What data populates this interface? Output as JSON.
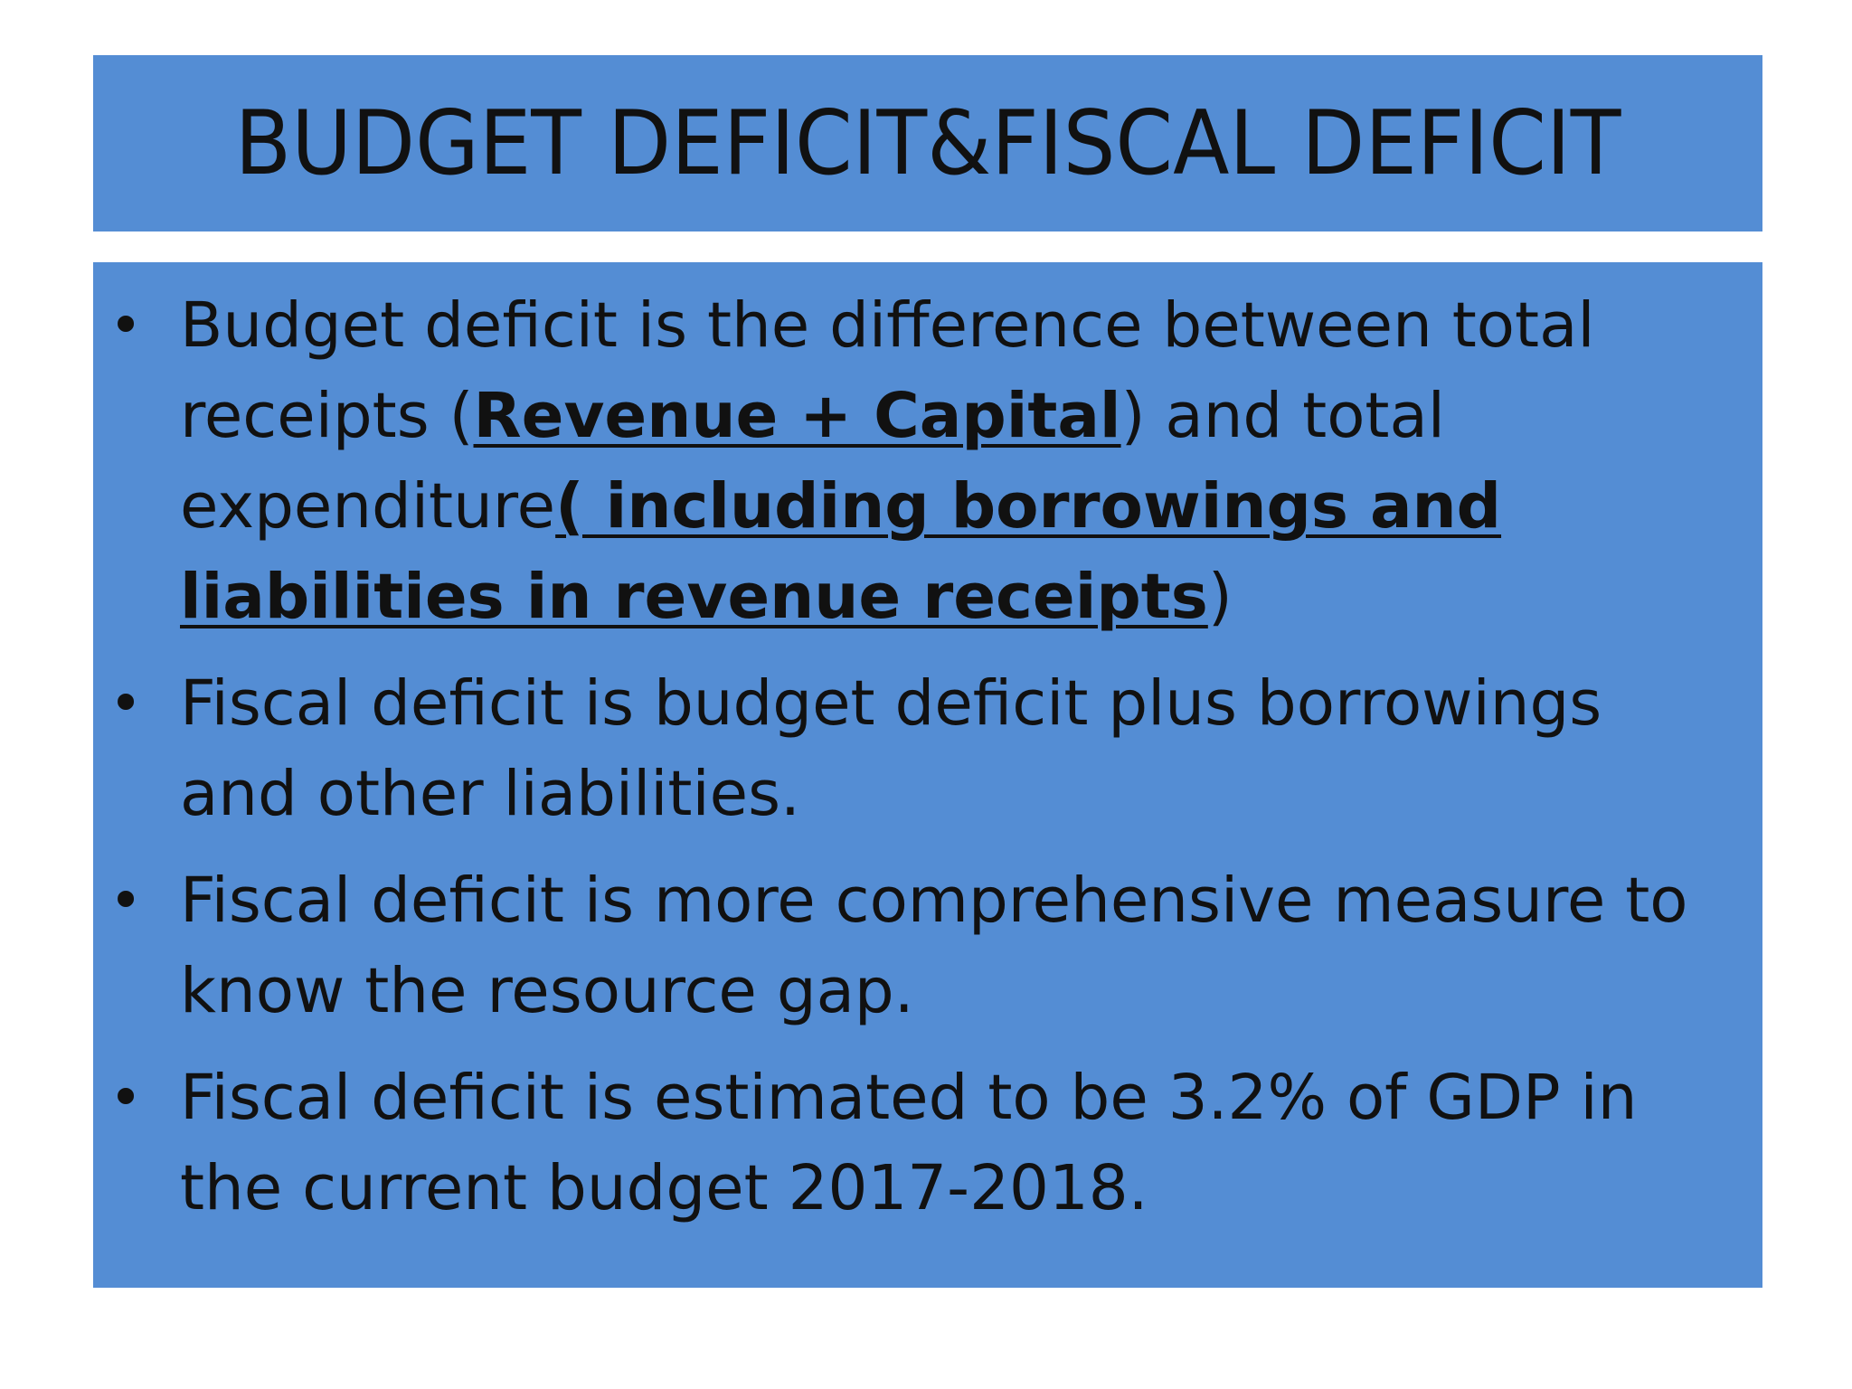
{
  "slide": {
    "title": "BUDGET DEFICIT&FISCAL DEFICIT",
    "bullet_char": "•",
    "bullets": [
      {
        "part1": "Budget deficit  is the difference between total receipts (",
        "part2": "Revenue + Capital",
        "part3": ") and total expenditure",
        "part4": "( including borrowings and liabilities in revenue receipts",
        "part5": ")"
      },
      {
        "text": "Fiscal deficit is budget deficit plus borrowings and other liabilities."
      },
      {
        "text": "Fiscal deficit is more comprehensive measure to know the resource gap."
      },
      {
        "text": "Fiscal deficit is estimated to be 3.2% of GDP in the current budget 2017-2018."
      }
    ]
  },
  "colors": {
    "box_fill": "#548dd4",
    "text": "#111111",
    "background": "#ffffff"
  }
}
